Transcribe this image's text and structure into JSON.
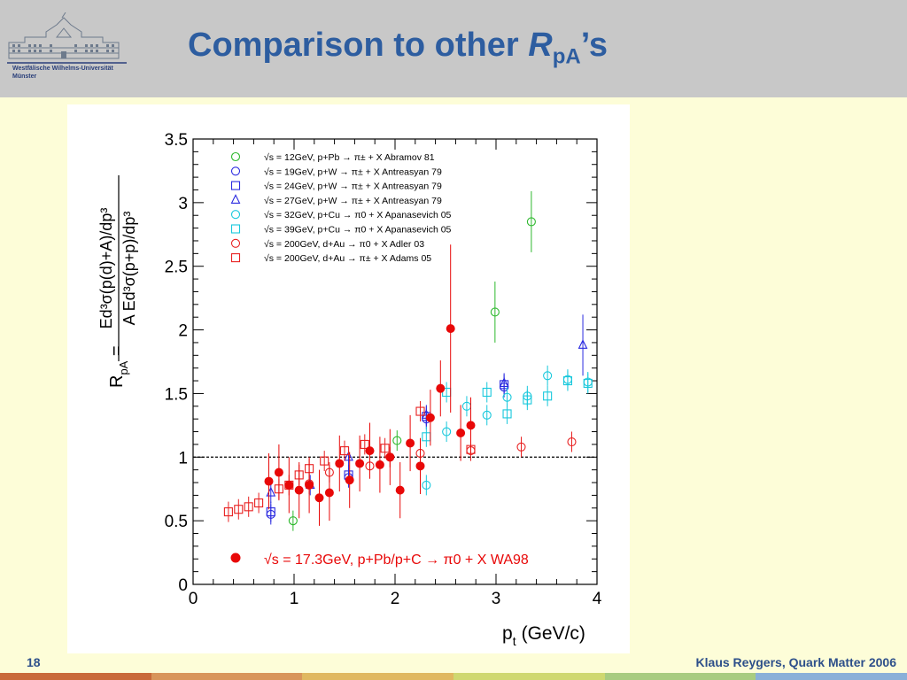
{
  "header": {
    "university_line1": "Westfälische Wilhelms-Universität",
    "university_line2": "Münster",
    "title_prefix": "Comparison to other ",
    "title_symbol": "R",
    "title_subscript": "pA",
    "title_suffix": "’s"
  },
  "footer": {
    "page_number": "18",
    "author": "Klaus Reygers, Quark Matter 2006",
    "bar_colors": [
      "#c96a3a",
      "#d8955a",
      "#e0b860",
      "#cfd870",
      "#a8cc80",
      "#8ab0d8"
    ]
  },
  "chart_data": {
    "type": "scatter",
    "xlabel": "p",
    "xlabel_sub": "t",
    "xlabel_unit": "(GeV/c)",
    "ylabel_lhs": "R",
    "ylabel_lhs_sub": "pA",
    "ylabel_numerator": "Ed³σ(p(d)+A)/dp³",
    "ylabel_denominator": "A Ed³σ(p+p)/dp³",
    "xlim": [
      0,
      4
    ],
    "ylim": [
      0,
      3.5
    ],
    "xticks": [
      "0",
      "1",
      "2",
      "3",
      "4"
    ],
    "yticks": [
      "0",
      "0.5",
      "1",
      "1.5",
      "2",
      "2.5",
      "3",
      "3.5"
    ],
    "reference_line": 1,
    "legend_placement": "top",
    "series": [
      {
        "name": "√s = 12GeV, p+Pb → π± + X Abramov 81",
        "marker": "circle-open",
        "color": "#2db82d",
        "points": [
          [
            0.99,
            0.5
          ],
          [
            2.02,
            1.13
          ],
          [
            2.99,
            2.14
          ],
          [
            3.35,
            2.85
          ]
        ]
      },
      {
        "name": "√s = 19GeV, p+W → π± + X  Antreasyan 79",
        "marker": "circle-open",
        "color": "#2a2ae0",
        "points": [
          [
            0.77,
            0.55
          ],
          [
            1.54,
            0.84
          ],
          [
            2.31,
            1.3
          ],
          [
            3.08,
            1.55
          ]
        ]
      },
      {
        "name": "√s = 24GeV, p+W → π± + X  Antreasyan 79",
        "marker": "square-open",
        "color": "#2a2ae0",
        "points": [
          [
            0.77,
            0.57
          ],
          [
            1.54,
            0.86
          ],
          [
            2.31,
            1.32
          ],
          [
            3.08,
            1.57
          ]
        ]
      },
      {
        "name": "√s = 27GeV, p+W → π± + X Antreasyan 79",
        "marker": "triangle-open",
        "color": "#2a2ae0",
        "points": [
          [
            0.77,
            0.72
          ],
          [
            1.16,
            0.78
          ],
          [
            1.54,
            1.0
          ],
          [
            2.31,
            1.33
          ],
          [
            3.08,
            1.58
          ],
          [
            3.86,
            1.88
          ]
        ]
      },
      {
        "name": "√s = 32GeV, p+Cu → π0 + X Apanasevich 05",
        "marker": "circle-open",
        "color": "#18c8dc",
        "points": [
          [
            2.31,
            0.78
          ],
          [
            2.51,
            1.2
          ],
          [
            2.71,
            1.4
          ],
          [
            2.91,
            1.33
          ],
          [
            3.11,
            1.47
          ],
          [
            3.31,
            1.48
          ],
          [
            3.51,
            1.64
          ],
          [
            3.71,
            1.61
          ],
          [
            3.91,
            1.59
          ]
        ]
      },
      {
        "name": "√s = 39GeV, p+Cu → π0 + X Apanasevich 05",
        "marker": "square-open",
        "color": "#18c8dc",
        "points": [
          [
            2.31,
            1.16
          ],
          [
            2.51,
            1.51
          ],
          [
            2.91,
            1.51
          ],
          [
            3.11,
            1.34
          ],
          [
            3.31,
            1.45
          ],
          [
            3.51,
            1.48
          ],
          [
            3.71,
            1.6
          ],
          [
            3.91,
            1.58
          ]
        ]
      },
      {
        "name": "√s = 200GeV, d+Au → π0 + X Adler 03",
        "marker": "circle-open",
        "color": "#e82020",
        "points": [
          [
            1.15,
            0.79
          ],
          [
            1.35,
            0.88
          ],
          [
            1.75,
            0.93
          ],
          [
            1.95,
            1.0
          ],
          [
            2.25,
            1.03
          ],
          [
            2.75,
            1.05
          ],
          [
            3.25,
            1.08
          ],
          [
            3.75,
            1.12
          ]
        ]
      },
      {
        "name": "√s = 200GeV, d+Au → π± + X Adams 05",
        "marker": "square-open",
        "color": "#e82020",
        "points": [
          [
            0.35,
            0.57
          ],
          [
            0.45,
            0.59
          ],
          [
            0.55,
            0.61
          ],
          [
            0.65,
            0.64
          ],
          [
            0.85,
            0.75
          ],
          [
            0.95,
            0.78
          ],
          [
            1.05,
            0.86
          ],
          [
            1.15,
            0.91
          ],
          [
            1.3,
            0.97
          ],
          [
            1.5,
            1.05
          ],
          [
            1.7,
            1.1
          ],
          [
            1.9,
            1.07
          ],
          [
            2.25,
            1.36
          ],
          [
            2.75,
            1.06
          ]
        ]
      },
      {
        "name": "√s = 17.3GeV, p+Pb/p+C → π0 + X WA98",
        "marker": "circle-filled",
        "color": "#e80808",
        "points": [
          [
            0.75,
            0.81
          ],
          [
            0.85,
            0.88
          ],
          [
            0.95,
            0.78
          ],
          [
            1.05,
            0.74
          ],
          [
            1.15,
            0.78
          ],
          [
            1.25,
            0.68
          ],
          [
            1.35,
            0.72
          ],
          [
            1.45,
            0.95
          ],
          [
            1.55,
            0.82
          ],
          [
            1.65,
            0.95
          ],
          [
            1.75,
            1.05
          ],
          [
            1.85,
            0.94
          ],
          [
            1.95,
            1.0
          ],
          [
            2.05,
            0.74
          ],
          [
            2.15,
            1.11
          ],
          [
            2.25,
            0.93
          ],
          [
            2.35,
            1.31
          ],
          [
            2.45,
            1.54
          ],
          [
            2.55,
            2.01
          ],
          [
            2.65,
            1.19
          ],
          [
            2.75,
            1.25
          ]
        ]
      }
    ]
  }
}
